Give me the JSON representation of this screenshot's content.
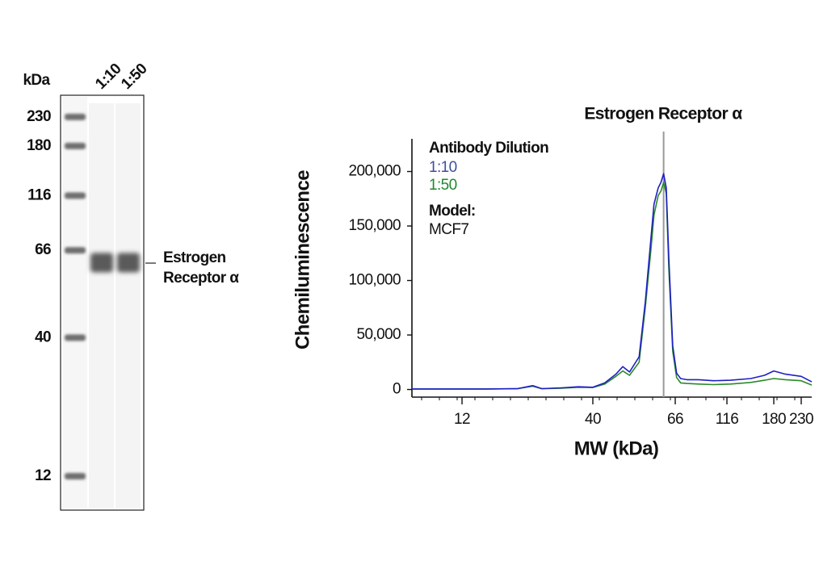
{
  "blot": {
    "unit_label": "kDa",
    "lanes": [
      "1:10",
      "1:50"
    ],
    "ladder": [
      230,
      180,
      116,
      66,
      40,
      12
    ],
    "band_label": [
      "Estrogen",
      "Receptor α"
    ]
  },
  "chart_data": {
    "type": "line",
    "x_label": "MW (kDa)",
    "y_label": "Chemiluminescence",
    "legend_title": "Antibody Dilution",
    "model_label": "Model:",
    "model": "MCF7",
    "marker": {
      "x": 61.5,
      "label": "Estrogen Receptor α",
      "color": "#999999"
    },
    "xlim": [
      7.5,
      250
    ],
    "xticks": [
      12,
      40,
      66,
      116,
      180,
      230
    ],
    "ylim": [
      -7000,
      230000
    ],
    "yticks": [
      0,
      {
        "value": 50000,
        "label": "50,000"
      },
      {
        "value": 100000,
        "label": "100,000"
      },
      {
        "value": 150000,
        "label": "150,000"
      },
      {
        "value": 200000,
        "label": "200,000"
      }
    ],
    "x": [
      7.5,
      12,
      15,
      20,
      23,
      25,
      30,
      35,
      40,
      43,
      46,
      48,
      50,
      53,
      55,
      57,
      58,
      59.5,
      60.5,
      61.5,
      62.5,
      63.5,
      65,
      67,
      70,
      75,
      85,
      100,
      120,
      145,
      165,
      180,
      200,
      230,
      250
    ],
    "series": [
      {
        "name": "1:10",
        "color": "#1f1fc4",
        "label_color": "#3d4f9e",
        "values": [
          500,
          500,
          500,
          800,
          3500,
          800,
          1500,
          2500,
          2000,
          6000,
          14000,
          21000,
          16000,
          30000,
          80000,
          140000,
          170000,
          185000,
          190000,
          198000,
          185000,
          120000,
          40000,
          15000,
          10000,
          9000,
          9000,
          8000,
          8500,
          10000,
          13000,
          17000,
          14000,
          12000,
          7000
        ]
      },
      {
        "name": "1:50",
        "color": "#2a8a2a",
        "label_color": "#1f8a2e",
        "values": [
          500,
          500,
          500,
          700,
          3000,
          700,
          1200,
          2000,
          1800,
          5000,
          12000,
          17000,
          13000,
          25000,
          75000,
          130000,
          160000,
          178000,
          182000,
          190000,
          180000,
          110000,
          35000,
          11000,
          6000,
          5500,
          5000,
          4500,
          5000,
          6500,
          8500,
          10000,
          9000,
          8000,
          4000
        ]
      }
    ]
  }
}
